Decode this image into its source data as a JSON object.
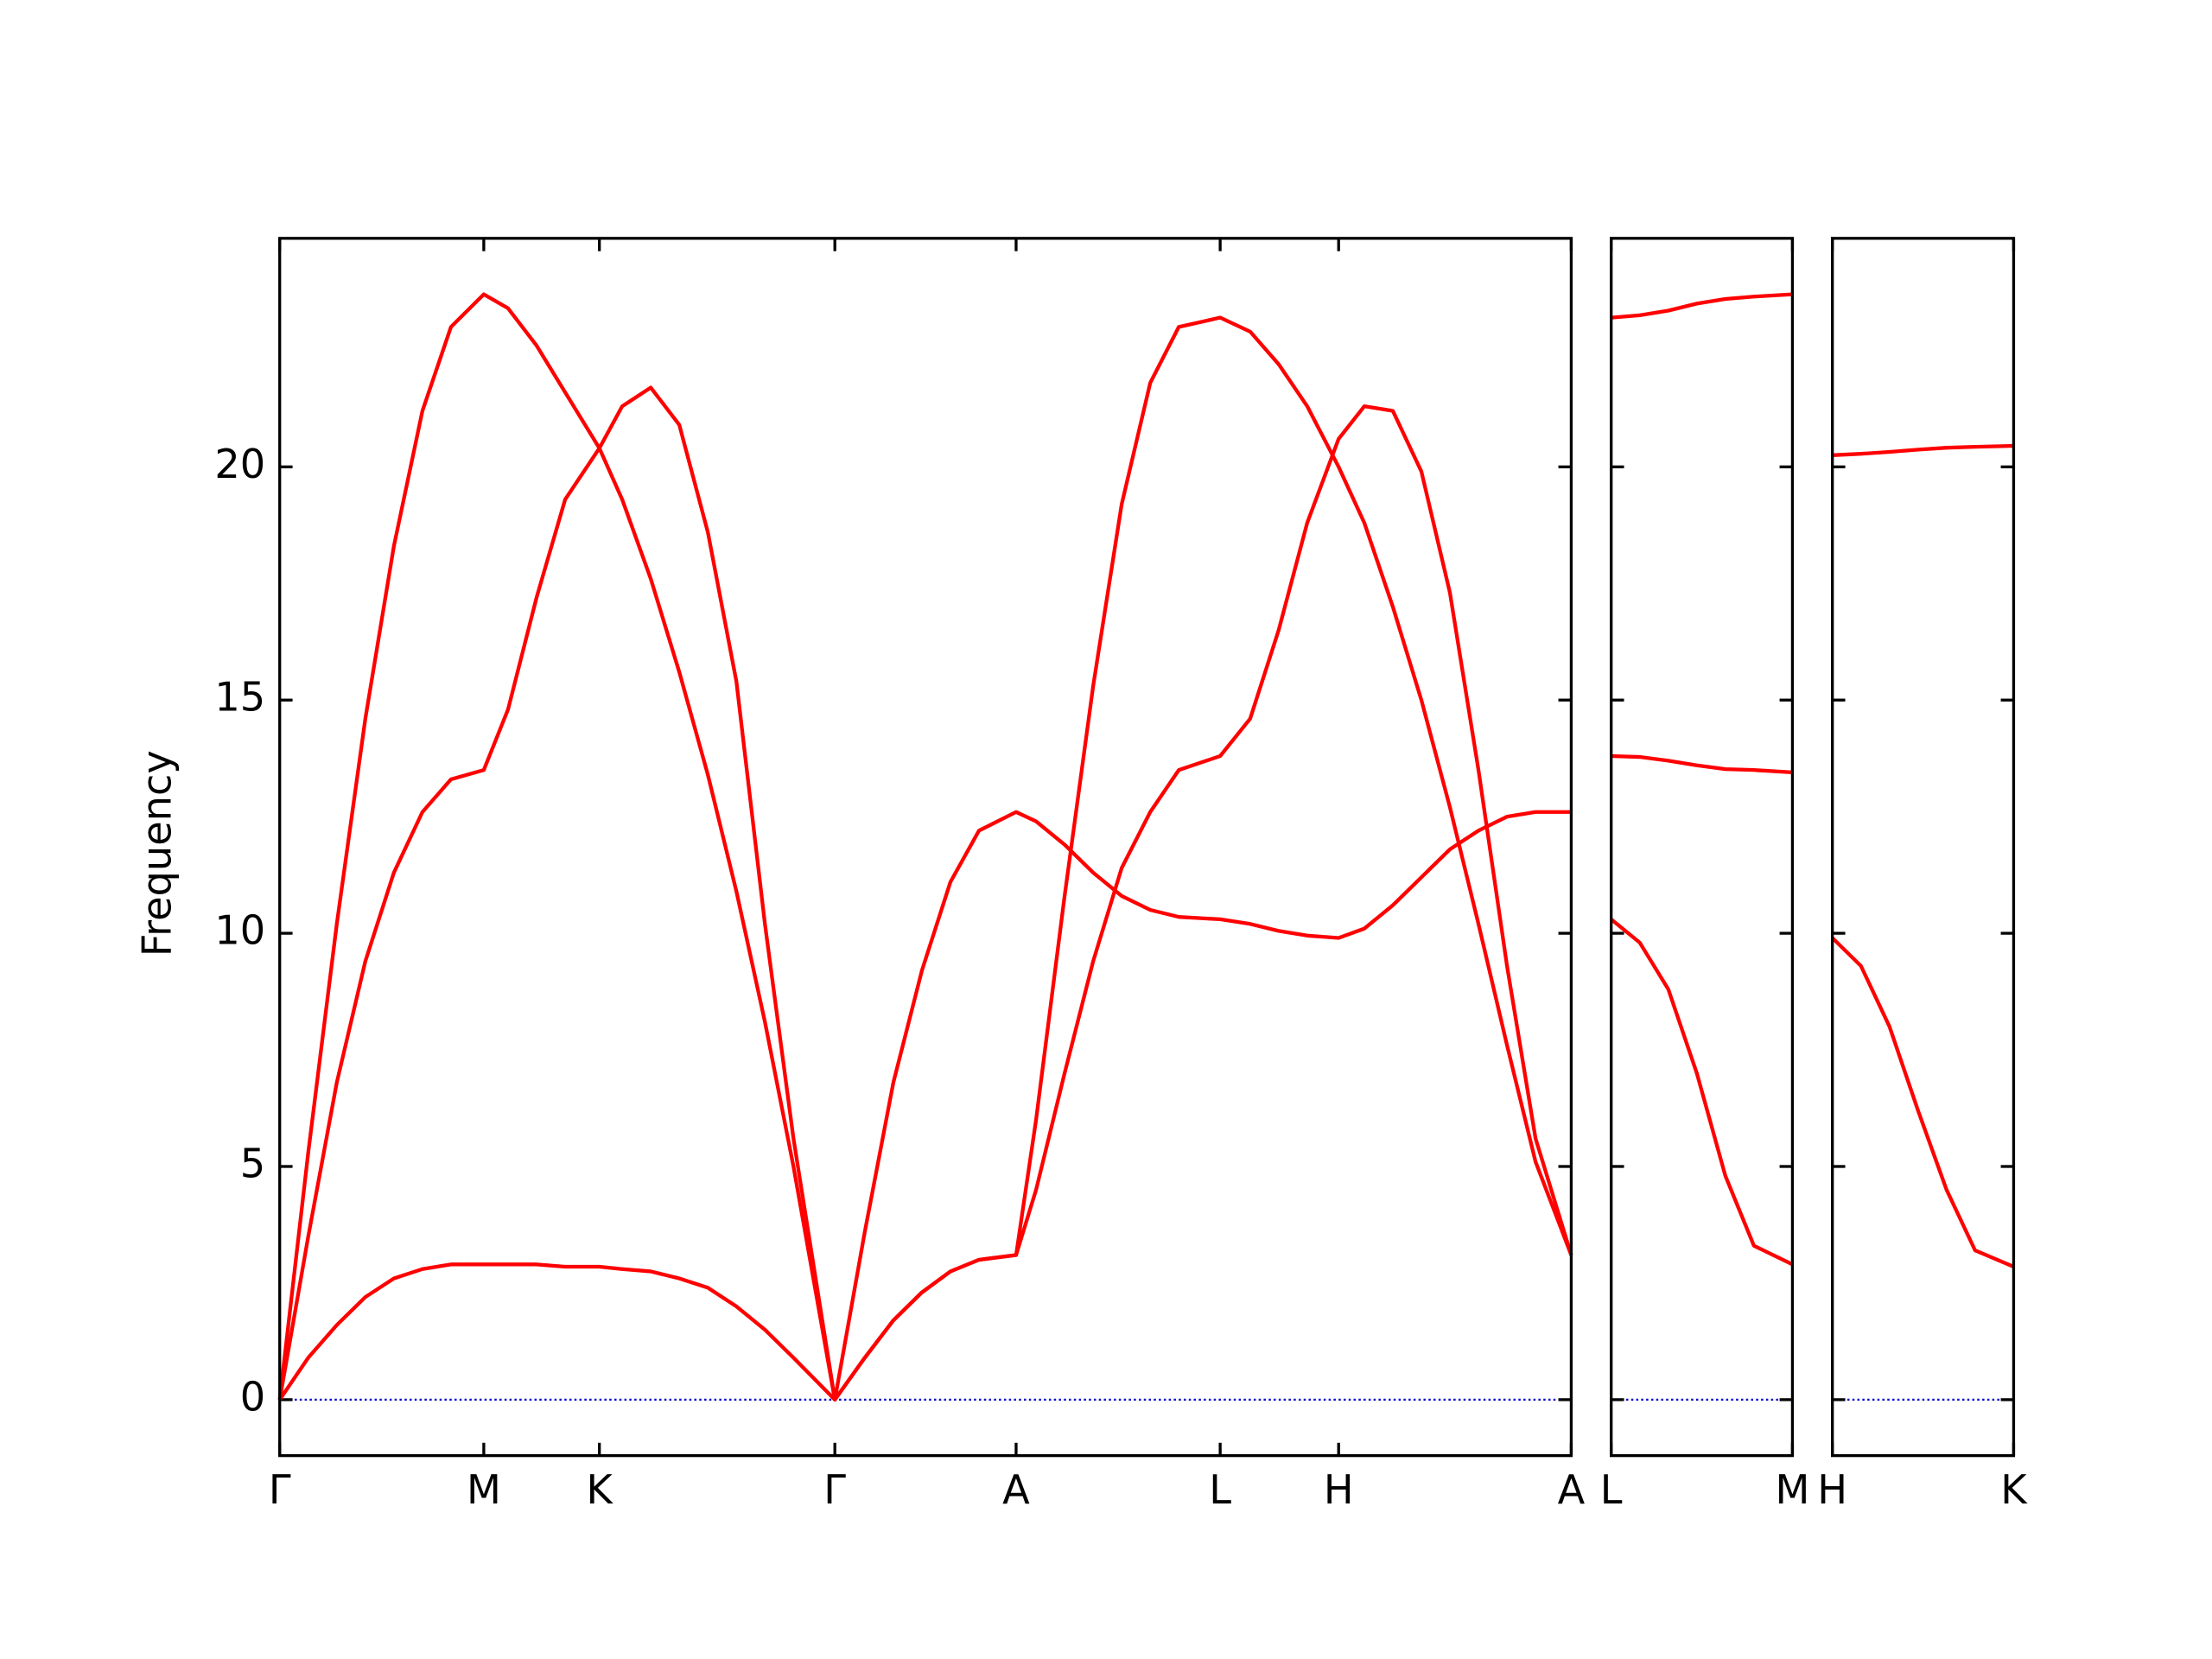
{
  "chart_data": [
    {
      "type": "line",
      "ylabel": "Frequency",
      "x": [
        0,
        0.2,
        0.4,
        0.6,
        0.8,
        1.0,
        1.2,
        1.43,
        1.6,
        1.8,
        2.0,
        2.24,
        2.4,
        2.6,
        2.8,
        3.0,
        3.2,
        3.4,
        3.6,
        3.89,
        4.1,
        4.3,
        4.5,
        4.7,
        4.9,
        5.16,
        5.3,
        5.5,
        5.7,
        5.9,
        6.1,
        6.3,
        6.59,
        6.8,
        7.0,
        7.2,
        7.42,
        7.6,
        7.8,
        8.0,
        8.2,
        8.4,
        8.6,
        8.8,
        9.05
      ],
      "series": [
        {
          "color": "#ff0000",
          "values": [
            0,
            5.3,
            10.2,
            14.6,
            18.3,
            21.2,
            23.0,
            23.7,
            23.4,
            22.6,
            21.6,
            20.4,
            19.3,
            17.6,
            15.6,
            13.4,
            10.9,
            8.1,
            5.0,
            0,
            0.9,
            1.7,
            2.3,
            2.75,
            3.0,
            3.1,
            6.0,
            10.8,
            15.3,
            19.2,
            21.8,
            23.0,
            23.2,
            22.9,
            22.2,
            21.3,
            20.0,
            18.8,
            17.0,
            15.0,
            12.7,
            10.2,
            7.6,
            5.1,
            3.1
          ]
        },
        {
          "color": "#ff0000",
          "values": [
            0,
            3.5,
            6.8,
            9.4,
            11.3,
            12.6,
            13.3,
            13.5,
            14.8,
            17.2,
            19.3,
            20.4,
            21.3,
            21.7,
            20.9,
            18.6,
            15.4,
            10.2,
            5.6,
            0,
            0.9,
            1.7,
            2.3,
            2.75,
            3.0,
            3.1,
            4.5,
            7.0,
            9.4,
            11.4,
            12.6,
            13.5,
            13.8,
            14.6,
            16.5,
            18.8,
            20.6,
            21.3,
            21.2,
            19.9,
            17.3,
            13.5,
            9.3,
            5.6,
            3.1
          ]
        },
        {
          "color": "#ff0000",
          "values": [
            0,
            0.9,
            1.6,
            2.2,
            2.6,
            2.8,
            2.9,
            2.9,
            2.9,
            2.9,
            2.85,
            2.85,
            2.8,
            2.75,
            2.6,
            2.4,
            2.0,
            1.5,
            0.9,
            0,
            3.6,
            6.8,
            9.2,
            11.1,
            12.2,
            12.6,
            12.4,
            11.9,
            11.3,
            10.8,
            10.5,
            10.35,
            10.3,
            10.2,
            10.05,
            9.95,
            9.9,
            10.1,
            10.6,
            11.2,
            11.8,
            12.2,
            12.5,
            12.6,
            12.6
          ]
        }
      ],
      "xlim": [
        0,
        9.05
      ],
      "ylim": [
        -1.2,
        24.9
      ],
      "xticks": [
        {
          "value": 0,
          "label": "Γ"
        },
        {
          "value": 1.43,
          "label": "M"
        },
        {
          "value": 2.24,
          "label": "K"
        },
        {
          "value": 3.89,
          "label": "Γ"
        },
        {
          "value": 5.16,
          "label": "A"
        },
        {
          "value": 6.59,
          "label": "L"
        },
        {
          "value": 7.42,
          "label": "H"
        },
        {
          "value": 9.05,
          "label": "A"
        }
      ],
      "yticks": [
        0,
        5,
        10,
        15,
        20
      ]
    },
    {
      "type": "line",
      "x": [
        0,
        0.2,
        0.4,
        0.6,
        0.8,
        1.0,
        1.27
      ],
      "series": [
        {
          "color": "#ff0000",
          "values": [
            23.2,
            23.25,
            23.35,
            23.5,
            23.6,
            23.65,
            23.7
          ]
        },
        {
          "color": "#ff0000",
          "values": [
            13.8,
            13.78,
            13.7,
            13.6,
            13.52,
            13.5,
            13.45
          ]
        },
        {
          "color": "#ff0000",
          "values": [
            10.3,
            9.8,
            8.8,
            7.0,
            4.8,
            3.3,
            2.9
          ]
        }
      ],
      "xlim": [
        0,
        1.27
      ],
      "ylim": [
        -1.2,
        24.9
      ],
      "xticks": [
        {
          "value": 0,
          "label": "L"
        },
        {
          "value": 1.27,
          "label": "M"
        }
      ]
    },
    {
      "type": "line",
      "x": [
        0,
        0.2,
        0.4,
        0.6,
        0.8,
        1.0,
        1.27
      ],
      "series": [
        {
          "color": "#ff0000",
          "values": [
            20.25,
            20.28,
            20.32,
            20.37,
            20.41,
            20.43,
            20.45
          ]
        },
        {
          "color": "#ff0000",
          "values": [
            9.9,
            9.3,
            8.0,
            6.2,
            4.5,
            3.2,
            2.85
          ]
        }
      ],
      "xlim": [
        0,
        1.27
      ],
      "ylim": [
        -1.2,
        24.9
      ],
      "xticks": [
        {
          "value": 0,
          "label": "H"
        },
        {
          "value": 1.27,
          "label": "K"
        }
      ]
    }
  ]
}
